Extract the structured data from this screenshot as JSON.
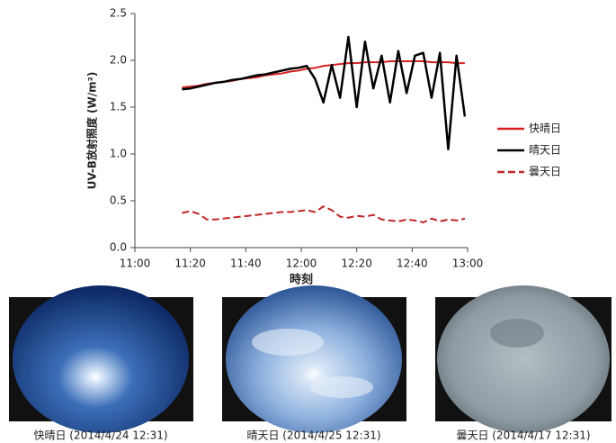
{
  "chart_data": {
    "type": "line",
    "ylabel": "UV-B放射照度 (W/m²)",
    "xlabel": "時刻",
    "x": [
      677,
      680,
      683,
      686,
      689,
      692,
      695,
      698,
      701,
      704,
      707,
      710,
      713,
      716,
      719,
      722,
      725,
      728,
      731,
      734,
      737,
      740,
      743,
      746,
      749,
      752,
      755,
      758,
      761,
      764,
      767,
      770,
      773,
      776,
      779
    ],
    "series": [
      {
        "name": "快晴日",
        "color": "#d62020",
        "style": "solid",
        "values": [
          1.71,
          1.72,
          1.73,
          1.75,
          1.76,
          1.77,
          1.78,
          1.8,
          1.81,
          1.82,
          1.84,
          1.85,
          1.86,
          1.88,
          1.89,
          1.91,
          1.92,
          1.94,
          1.95,
          1.96,
          1.97,
          1.97,
          1.98,
          1.98,
          1.98,
          1.99,
          1.99,
          1.99,
          1.99,
          1.99,
          1.98,
          1.98,
          1.98,
          1.97,
          1.97
        ]
      },
      {
        "name": "晴天日",
        "color": "#000000",
        "style": "solid",
        "values": [
          1.69,
          1.7,
          1.72,
          1.74,
          1.76,
          1.77,
          1.79,
          1.8,
          1.82,
          1.84,
          1.85,
          1.87,
          1.89,
          1.91,
          1.92,
          1.94,
          1.8,
          1.55,
          1.95,
          1.6,
          2.25,
          1.5,
          2.2,
          1.7,
          2.05,
          1.55,
          2.1,
          1.65,
          2.05,
          2.08,
          1.6,
          2.08,
          1.05,
          2.05,
          1.4
        ]
      },
      {
        "name": "曇天日",
        "color": "#c0282a",
        "style": "dashed",
        "values": [
          0.37,
          0.39,
          0.36,
          0.3,
          0.3,
          0.31,
          0.32,
          0.33,
          0.34,
          0.35,
          0.36,
          0.37,
          0.38,
          0.38,
          0.39,
          0.4,
          0.38,
          0.44,
          0.4,
          0.33,
          0.32,
          0.34,
          0.33,
          0.35,
          0.3,
          0.29,
          0.28,
          0.3,
          0.29,
          0.27,
          0.31,
          0.28,
          0.3,
          0.29,
          0.31
        ]
      }
    ],
    "xlim": [
      660,
      780
    ],
    "xticks": [
      {
        "value": 660,
        "label": "11:00"
      },
      {
        "value": 680,
        "label": "11:20"
      },
      {
        "value": 700,
        "label": "11:40"
      },
      {
        "value": 720,
        "label": "12:00"
      },
      {
        "value": 740,
        "label": "12:20"
      },
      {
        "value": 760,
        "label": "12:40"
      },
      {
        "value": 780,
        "label": "13:00"
      }
    ],
    "ylim": [
      0,
      2.5
    ],
    "yticks": [
      {
        "value": 0,
        "label": "0.0"
      },
      {
        "value": 0.5,
        "label": "0.5"
      },
      {
        "value": 1,
        "label": "1.0"
      },
      {
        "value": 1.5,
        "label": "1.5"
      },
      {
        "value": 2,
        "label": "2.0"
      },
      {
        "value": 2.5,
        "label": "2.5"
      }
    ],
    "grid": false,
    "legend": "right"
  },
  "photos": [
    {
      "caption": "快晴日 (2014/4/24 12:31)"
    },
    {
      "caption": "晴天日 (2014/4/25 12:31)"
    },
    {
      "caption": "曇天日 (2014/4/17 12:31)"
    }
  ]
}
